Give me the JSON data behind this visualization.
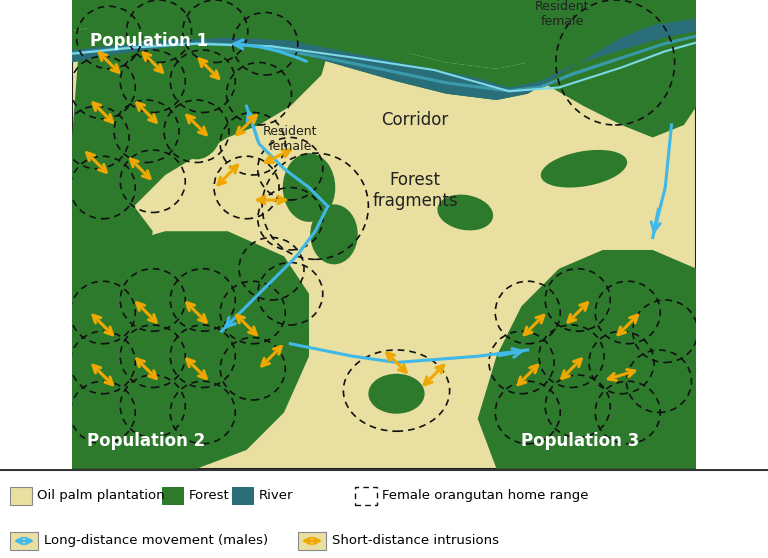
{
  "plantation_color": "#e8dfa0",
  "forest_color": "#2d7a2d",
  "forest_dark_color": "#1e5c1e",
  "river_outer_color": "#2d7a2d",
  "river_mid_color": "#2a6e7a",
  "river_line_color": "#7dd8e8",
  "blue_arrow_color": "#40b8e8",
  "orange_arrow_color": "#f0a800",
  "dashed_color": "#111111",
  "border_color": "#222222",
  "pop1_label": "Population 1",
  "pop2_label": "Population 2",
  "pop3_label": "Population 3",
  "corridor_label": "Corridor",
  "forest_frag_label": "Forest\nfragments",
  "res_female_label1": "Resident\nfemale",
  "res_female_label2": "Resident\nfemale",
  "legend_items": [
    "Oil palm plantation",
    "Forest",
    "River",
    "Female orangutan home range",
    "Long-distance movement (males)",
    "Short-distance intrusions"
  ],
  "figsize": [
    7.68,
    5.58
  ],
  "dpi": 100
}
